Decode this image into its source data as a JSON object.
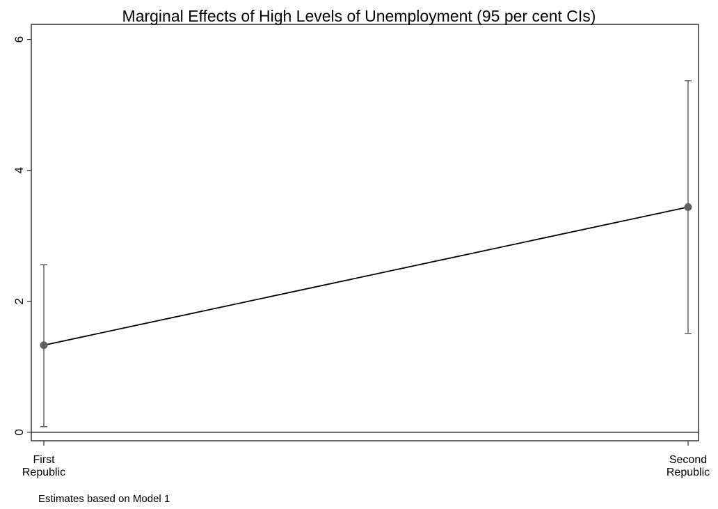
{
  "chart_data": {
    "type": "line",
    "title": "Marginal Effects of High Levels of Unemployment (95 per cent CIs)",
    "note": "Estimates based on Model 1",
    "categories": [
      "First Republic",
      "Second Republic"
    ],
    "series": [
      {
        "color": "#000000",
        "marker_color": "#606060",
        "values": [
          1.33,
          3.44
        ],
        "ci_low": [
          0.085,
          1.51
        ],
        "ci_high": [
          2.56,
          5.37
        ]
      }
    ],
    "ylim": [
      -0.13,
      6.23
    ],
    "yticks": [
      0,
      2,
      4,
      6
    ],
    "reference_line": 0
  }
}
